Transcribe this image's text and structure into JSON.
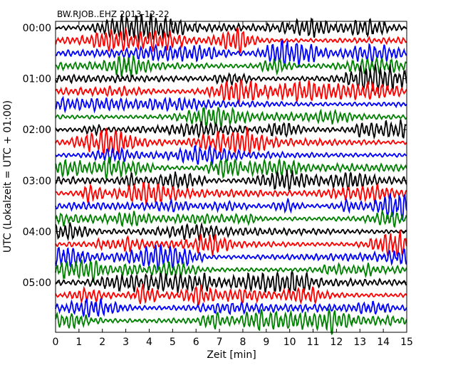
{
  "chart_data": {
    "type": "line",
    "title": "BW.RJOB..EHZ 2013-12-22",
    "xlabel": "Zeit  [min]",
    "ylabel": "UTC (Lokalzeit = UTC + 01:00)",
    "xlim": [
      0,
      15
    ],
    "x_ticks": [
      "0",
      "1",
      "2",
      "3",
      "4",
      "5",
      "6",
      "7",
      "8",
      "9",
      "10",
      "11",
      "12",
      "13",
      "14",
      "15"
    ],
    "y_ticks": [
      "00:00",
      "01:00",
      "02:00",
      "03:00",
      "04:00",
      "05:00"
    ],
    "rows_per_hour": 4,
    "row_count": 24,
    "trace_colors": [
      "#000000",
      "#ff0000",
      "#0000ff",
      "#008000"
    ],
    "grid": false,
    "legend": "none"
  }
}
